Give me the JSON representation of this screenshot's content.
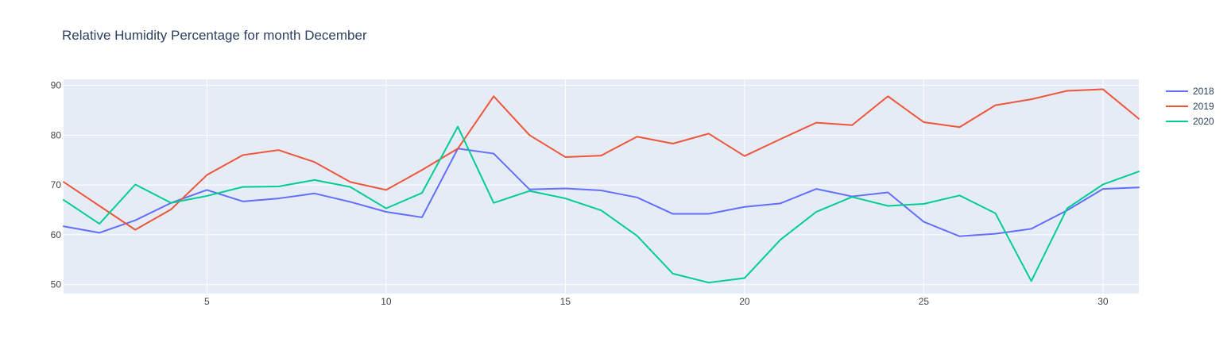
{
  "chart_data": {
    "type": "line",
    "title": "Relative Humidity Percentage for month December",
    "xlabel": "",
    "ylabel": "",
    "x": [
      1,
      2,
      3,
      4,
      5,
      6,
      7,
      8,
      9,
      10,
      11,
      12,
      13,
      14,
      15,
      16,
      17,
      18,
      19,
      20,
      21,
      22,
      23,
      24,
      25,
      26,
      27,
      28,
      29,
      30,
      31
    ],
    "xlim": [
      1,
      31
    ],
    "ylim": [
      48.2,
      91.2
    ],
    "x_ticks": [
      5,
      10,
      15,
      20,
      25,
      30
    ],
    "y_ticks": [
      50,
      60,
      70,
      80,
      90
    ],
    "grid": true,
    "legend_position": "top-right",
    "background_color": "#e5ecf6",
    "series": [
      {
        "name": "2018",
        "color": "#636efa",
        "values": [
          61.7,
          60.4,
          62.9,
          66.4,
          69.0,
          66.7,
          67.3,
          68.3,
          66.6,
          64.6,
          63.5,
          77.3,
          76.3,
          69.1,
          69.3,
          68.9,
          67.5,
          64.2,
          64.2,
          65.6,
          66.3,
          69.2,
          67.7,
          68.5,
          62.6,
          59.7,
          60.2,
          61.2,
          64.9,
          69.2,
          69.5
        ]
      },
      {
        "name": "2019",
        "color": "#ef553b",
        "values": [
          70.6,
          65.8,
          61.0,
          65.1,
          72.0,
          76.0,
          77.0,
          74.6,
          70.6,
          69.0,
          73.0,
          77.3,
          87.8,
          80.0,
          75.6,
          75.9,
          79.7,
          78.3,
          80.3,
          75.8,
          79.2,
          82.5,
          82.0,
          87.8,
          82.6,
          81.6,
          86.0,
          87.2,
          88.9,
          89.2,
          83.3
        ]
      },
      {
        "name": "2020",
        "color": "#00cc96",
        "values": [
          67.0,
          62.2,
          70.1,
          66.4,
          67.8,
          69.6,
          69.7,
          71.0,
          69.6,
          65.3,
          68.4,
          81.7,
          66.4,
          68.8,
          67.3,
          64.9,
          59.8,
          52.2,
          50.4,
          51.3,
          59.0,
          64.6,
          67.6,
          65.8,
          66.2,
          67.9,
          64.3,
          50.7,
          65.3,
          70.1,
          72.7
        ]
      }
    ]
  }
}
